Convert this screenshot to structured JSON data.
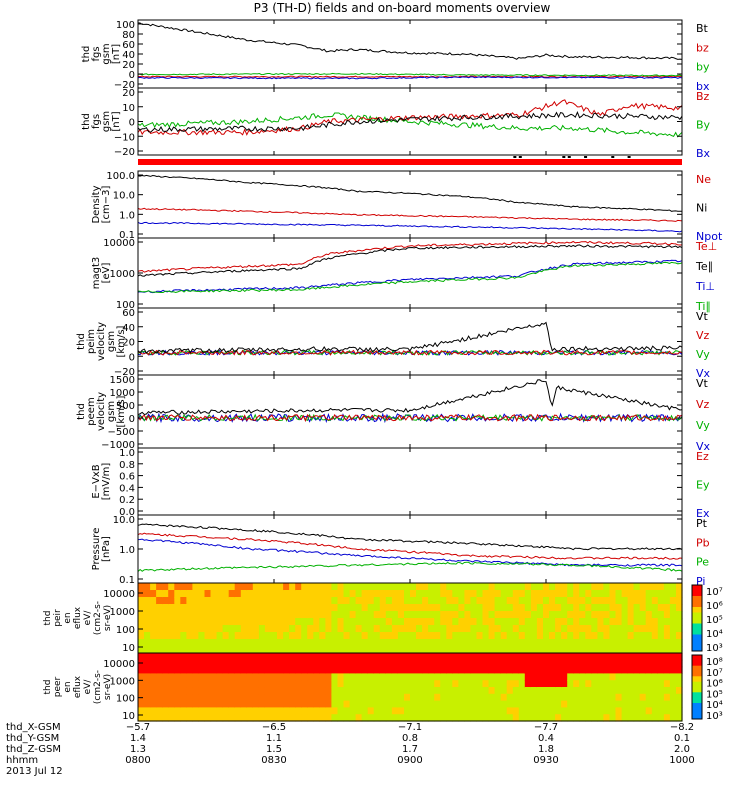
{
  "title": "P3 (TH-D) fields and on-board moments overview",
  "chart_data": {
    "type": "line",
    "x_ticks": [
      "0800",
      "0830",
      "0900",
      "0930",
      "1000"
    ],
    "panels": [
      {
        "ylabel": [
          "thd",
          "fgs",
          "gsm",
          "[nT]"
        ],
        "yticks": [
          "100",
          "80",
          "60",
          "40",
          "20",
          "0",
          "−20"
        ],
        "ylim": [
          -20,
          100
        ],
        "scale": "linear",
        "legend": [
          {
            "label": "Bt",
            "color": "#000000"
          },
          {
            "label": "bz",
            "color": "#d00000"
          },
          {
            "label": "by",
            "color": "#00b000"
          },
          {
            "label": "bx",
            "color": "#0000d0"
          }
        ],
        "series": [
          {
            "color": "#000000",
            "x": [
              0,
              0.1,
              0.2,
              0.3,
              0.35,
              0.4,
              0.5,
              0.6,
              0.7,
              0.75,
              0.8,
              0.9,
              1.0
            ],
            "y": [
              95,
              80,
              65,
              55,
              45,
              48,
              42,
              40,
              32,
              38,
              35,
              34,
              32
            ],
            "noise": 2
          },
          {
            "color": "#d00000",
            "x": [
              0,
              1
            ],
            "y": [
              0,
              0
            ],
            "noise": 1
          },
          {
            "color": "#00b000",
            "x": [
              0,
              0.4,
              0.6,
              1
            ],
            "y": [
              4,
              5,
              3,
              2
            ],
            "noise": 1
          },
          {
            "color": "#0000d0",
            "x": [
              0,
              0.4,
              0.6,
              1
            ],
            "y": [
              -2,
              -3,
              -1,
              -2
            ],
            "noise": 1
          }
        ]
      },
      {
        "ylabel": [
          "thd",
          "fgs",
          "gsm",
          "[nT]"
        ],
        "yticks": [
          "20",
          "10",
          "0",
          "−10",
          "−20"
        ],
        "ylim": [
          -25,
          25
        ],
        "scale": "linear",
        "legend": [
          {
            "label": "Bz",
            "color": "#d00000"
          },
          {
            "label": "By",
            "color": "#00b000"
          },
          {
            "label": "Bx",
            "color": "#0000d0"
          }
        ],
        "series": [
          {
            "color": "#00b000",
            "x": [
              0,
              0.2,
              0.3,
              0.35,
              0.5,
              0.7,
              0.8,
              0.9,
              1.0
            ],
            "y": [
              -3,
              0,
              3,
              5,
              0,
              -5,
              -5,
              -8,
              -10
            ],
            "noise": 2
          },
          {
            "color": "#d00000",
            "x": [
              0,
              0.2,
              0.3,
              0.35,
              0.5,
              0.7,
              0.78,
              0.85,
              0.9,
              1.0
            ],
            "y": [
              -8,
              -8,
              -5,
              0,
              3,
              5,
              15,
              5,
              12,
              10
            ],
            "noise": 2
          },
          {
            "color": "#000000",
            "x": [
              0,
              0.3,
              0.4,
              0.6,
              0.8,
              1.0
            ],
            "y": [
              -6,
              -5,
              0,
              3,
              5,
              3
            ],
            "noise": 2
          }
        ]
      },
      {
        "ylabel": [
          "Density",
          "[cm−3]"
        ],
        "yticks": [
          "100.0",
          "10.0",
          "1.0",
          "0.1"
        ],
        "ylim": [
          0.07,
          150
        ],
        "scale": "log",
        "legend": [
          {
            "label": "Ne",
            "color": "#d00000"
          },
          {
            "label": "Ni",
            "color": "#000000"
          },
          {
            "label": "Npot",
            "color": "#0000d0"
          }
        ],
        "series": [
          {
            "color": "#000000",
            "x": [
              0,
              0.2,
              0.4,
              0.6,
              0.7,
              0.8,
              0.9,
              1.0
            ],
            "y": [
              90,
              40,
              15,
              8,
              4,
              2.5,
              2,
              1.5
            ],
            "noise": 0
          },
          {
            "color": "#d00000",
            "x": [
              0,
              0.4,
              0.6,
              0.8,
              1.0
            ],
            "y": [
              2,
              1,
              0.8,
              0.6,
              0.5
            ],
            "noise": 0
          },
          {
            "color": "#0000d0",
            "x": [
              0,
              0.4,
              0.6,
              0.8,
              1.0
            ],
            "y": [
              0.4,
              0.3,
              0.25,
              0.2,
              0.15
            ],
            "noise": 0
          }
        ]
      },
      {
        "ylabel": [
          "magt3",
          "[eV]"
        ],
        "yticks": [
          "10000",
          "1000",
          "100"
        ],
        "ylim": [
          100,
          12000
        ],
        "scale": "log",
        "legend": [
          {
            "label": "Te⊥",
            "color": "#d00000"
          },
          {
            "label": "Te∥",
            "color": "#000000"
          },
          {
            "label": "Ti⊥",
            "color": "#0000d0"
          },
          {
            "label": "Ti∥",
            "color": "#00b000"
          }
        ],
        "series": [
          {
            "color": "#d00000",
            "x": [
              0,
              0.3,
              0.35,
              0.5,
              0.8,
              1.0
            ],
            "y": [
              1200,
              2000,
              4000,
              7000,
              9000,
              8000
            ],
            "noise": 0
          },
          {
            "color": "#000000",
            "x": [
              0,
              0.3,
              0.35,
              0.5,
              0.8,
              1.0
            ],
            "y": [
              900,
              1500,
              3000,
              6000,
              7000,
              6500
            ],
            "noise": 0
          },
          {
            "color": "#0000d0",
            "x": [
              0,
              0.3,
              0.5,
              0.7,
              0.8,
              1.0
            ],
            "y": [
              300,
              400,
              700,
              900,
              2000,
              2500
            ],
            "noise": 0
          },
          {
            "color": "#00b000",
            "x": [
              0,
              0.3,
              0.5,
              0.7,
              0.8,
              1.0
            ],
            "y": [
              300,
              350,
              600,
              800,
              1800,
              2200
            ],
            "noise": 0
          }
        ]
      },
      {
        "ylabel": [
          "thd",
          "peim",
          "velocity",
          "gsm",
          "[km/s]"
        ],
        "yticks": [
          "60",
          "40",
          "20",
          "0",
          "−20"
        ],
        "ylim": [
          -30,
          60
        ],
        "scale": "linear",
        "legend": [
          {
            "label": "Vt",
            "color": "#000000"
          },
          {
            "label": "Vz",
            "color": "#d00000"
          },
          {
            "label": "Vy",
            "color": "#00b000"
          },
          {
            "label": "Vx",
            "color": "#0000d0"
          }
        ],
        "series": [
          {
            "color": "#0000d0",
            "x": [
              0,
              1
            ],
            "y": [
              0,
              0
            ],
            "noise": 3
          },
          {
            "color": "#00b000",
            "x": [
              0,
              1
            ],
            "y": [
              0,
              0
            ],
            "noise": 3
          },
          {
            "color": "#d00000",
            "x": [
              0,
              1
            ],
            "y": [
              0,
              0
            ],
            "noise": 3
          },
          {
            "color": "#000000",
            "x": [
              0,
              0.35,
              0.5,
              0.75,
              0.76,
              1.0
            ],
            "y": [
              2,
              5,
              4,
              40,
              5,
              6
            ],
            "noise": 3
          }
        ]
      },
      {
        "ylabel": [
          "thd",
          "peem",
          "velocity",
          "gsm",
          "[km/s]"
        ],
        "yticks": [
          "1500",
          "1000",
          "500",
          "0",
          "−500",
          "−1000"
        ],
        "ylim": [
          -1200,
          1700
        ],
        "scale": "linear",
        "legend": [
          {
            "label": "Vt",
            "color": "#000000"
          },
          {
            "label": "Vz",
            "color": "#d00000"
          },
          {
            "label": "Vy",
            "color": "#00b000"
          },
          {
            "label": "Vx",
            "color": "#0000d0"
          }
        ],
        "series": [
          {
            "color": "#0000d0",
            "x": [
              0,
              1
            ],
            "y": [
              0,
              0
            ],
            "noise": 150
          },
          {
            "color": "#00b000",
            "x": [
              0,
              1
            ],
            "y": [
              0,
              0
            ],
            "noise": 120
          },
          {
            "color": "#d00000",
            "x": [
              0,
              1
            ],
            "y": [
              0,
              0
            ],
            "noise": 120
          },
          {
            "color": "#000000",
            "x": [
              0,
              0.35,
              0.5,
              0.75,
              0.76,
              0.77,
              1.0
            ],
            "y": [
              200,
              300,
              300,
              1500,
              400,
              1200,
              300
            ],
            "noise": 80
          }
        ]
      },
      {
        "ylabel": [
          "E−VxB",
          "[mV/m]"
        ],
        "yticks": [
          "1.0",
          "0.8",
          "0.6",
          "0.4",
          "0.2",
          "0.0"
        ],
        "ylim": [
          0,
          1
        ],
        "scale": "linear",
        "legend": [
          {
            "label": "Ez",
            "color": "#d00000"
          },
          {
            "label": "Ey",
            "color": "#00b000"
          },
          {
            "label": "Ex",
            "color": "#0000d0"
          }
        ],
        "series": []
      },
      {
        "ylabel": [
          "Pressure",
          "[nPa]"
        ],
        "yticks": [
          "10.0",
          "1.0",
          "0.1"
        ],
        "ylim": [
          0.08,
          12
        ],
        "scale": "log",
        "legend": [
          {
            "label": "Pt",
            "color": "#000000"
          },
          {
            "label": "Pb",
            "color": "#d00000"
          },
          {
            "label": "Pe",
            "color": "#00b000"
          },
          {
            "label": "Pi",
            "color": "#0000d0"
          }
        ],
        "series": [
          {
            "color": "#000000",
            "x": [
              0,
              0.2,
              0.4,
              0.6,
              0.8,
              1.0
            ],
            "y": [
              6,
              4,
              2,
              1.5,
              1,
              1
            ],
            "noise": 0
          },
          {
            "color": "#d00000",
            "x": [
              0,
              0.2,
              0.4,
              0.6,
              0.8,
              1.0
            ],
            "y": [
              3,
              2,
              1,
              0.6,
              0.5,
              0.5
            ],
            "noise": 0
          },
          {
            "color": "#0000d0",
            "x": [
              0,
              0.2,
              0.4,
              0.6,
              0.8,
              1.0
            ],
            "y": [
              2,
              1,
              0.6,
              0.4,
              0.3,
              0.3
            ],
            "noise": 0
          },
          {
            "color": "#00b000",
            "x": [
              0,
              0.2,
              0.4,
              0.6,
              0.8,
              1.0
            ],
            "y": [
              0.2,
              0.25,
              0.3,
              0.35,
              0.3,
              0.2
            ],
            "noise": 0
          }
        ]
      }
    ],
    "spectrograms": [
      {
        "ylabel": [
          "thd",
          "peir",
          "en",
          "eflux",
          "eV/",
          "(cm2-s-",
          "sr-eV)"
        ],
        "yticks": [
          "10000",
          "1000",
          "100",
          "10"
        ],
        "colorbar_ticks": [
          "10⁷",
          "10⁶",
          "10⁵",
          "10⁴",
          "10³"
        ]
      },
      {
        "ylabel": [
          "thd",
          "peer",
          "en",
          "eflux",
          "eV/",
          "(cm2-s-",
          "sr-eV)"
        ],
        "yticks": [
          "10000",
          "1000",
          "100",
          "10"
        ],
        "colorbar_ticks": [
          "10⁸",
          "10⁷",
          "10⁶",
          "10⁵",
          "10⁴",
          "10³"
        ]
      }
    ],
    "x_rows": [
      {
        "label": "thd_X-GSM",
        "values": [
          "−5.7",
          "−6.5",
          "−7.1",
          "−7.7",
          "−8.2"
        ]
      },
      {
        "label": "thd_Y-GSM",
        "values": [
          "1.4",
          "1.1",
          "0.8",
          "0.4",
          "0.1"
        ]
      },
      {
        "label": "thd_Z-GSM",
        "values": [
          "1.3",
          "1.5",
          "1.7",
          "1.8",
          "2.0"
        ]
      },
      {
        "label": "hhmm",
        "values": [
          "0800",
          "0830",
          "0900",
          "0930",
          "1000"
        ]
      }
    ],
    "date": "2013 Jul 12"
  }
}
